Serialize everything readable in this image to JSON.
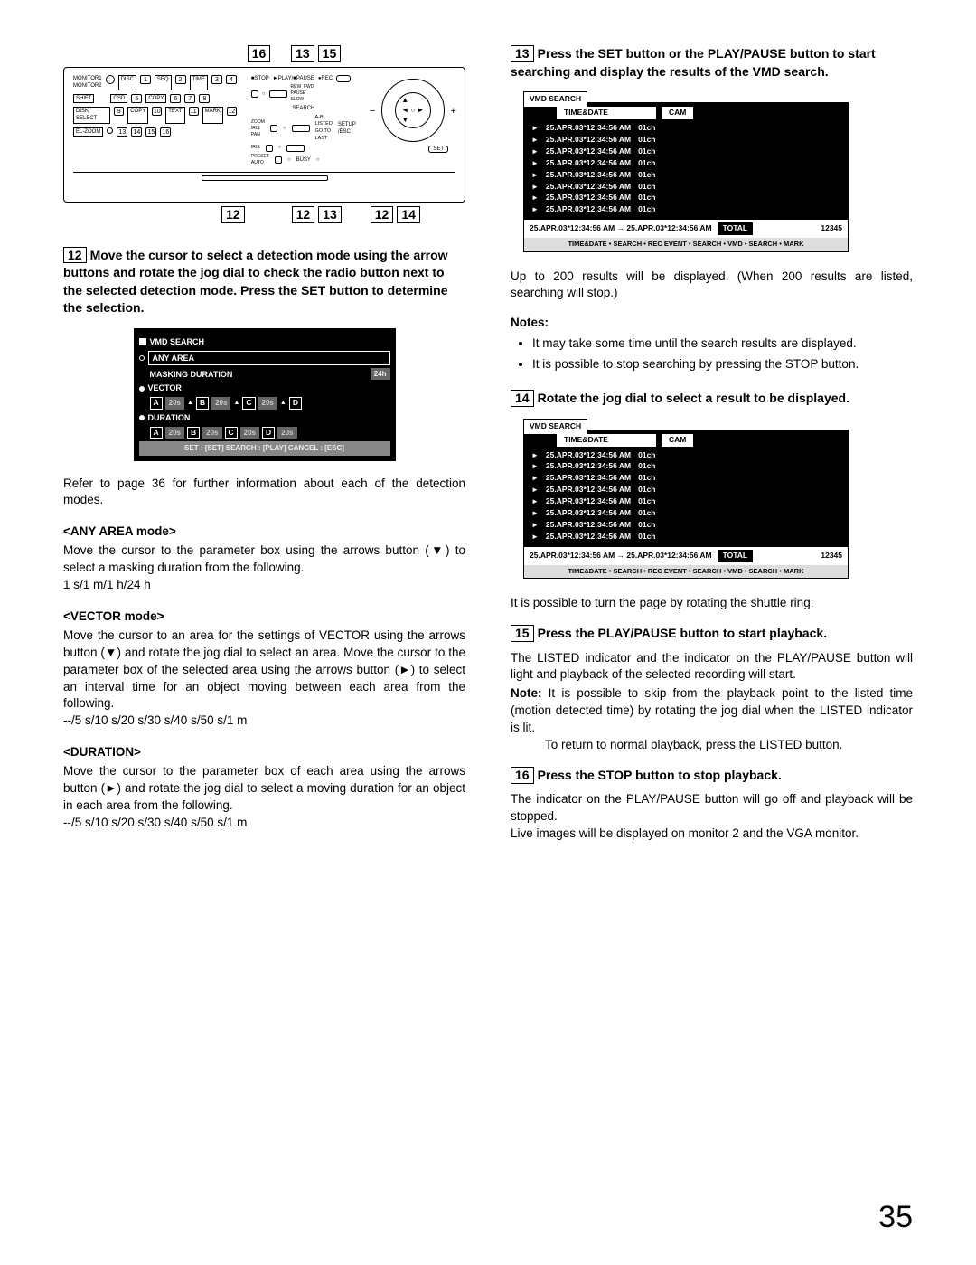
{
  "page_number": "35",
  "top_callouts": {
    "a": "16",
    "b": "13",
    "c": "15",
    "d": "12",
    "e": "12",
    "f": "13",
    "g": "12",
    "h": "14"
  },
  "panel": {
    "top_labels": [
      "MONITOR 1",
      "MONITOR 2",
      "REC",
      "STOP",
      "PLAY/PAUSE",
      "REC"
    ],
    "rightcol": [
      "SEARCH",
      "SETUP/ESC",
      "SET"
    ],
    "mini_words": [
      "STOP",
      "PLAY/PAUSE",
      "REW",
      "FWD",
      "PAUSE/SLOW"
    ],
    "row_btns1": [
      "1",
      "2",
      "3",
      "4"
    ],
    "row_btns2": [
      "5",
      "6",
      "7",
      "8"
    ],
    "row_btns3": [
      "9",
      "10",
      "11",
      "12"
    ],
    "row_btns4": [
      "13",
      "14",
      "15",
      "16"
    ],
    "left_labels": [
      "SHIFT",
      "DISK SELECT",
      "COPY",
      "SET",
      "A-B",
      "EL-ZOOM",
      "GO TO LAST",
      "LISTED",
      "TEXT",
      "MARK"
    ]
  },
  "step12": {
    "num": "12",
    "heading": "Move the cursor to select a detection mode using the arrow buttons and rotate the jog dial to check the radio button next to the selected detection mode. Press the SET button to determine the selection.",
    "panel": {
      "title": "VMD SEARCH",
      "rows": [
        {
          "bullet": "hollow",
          "label": "ANY AREA"
        },
        {
          "bullet": "",
          "label": "MASKING DURATION",
          "val": "24h"
        },
        {
          "bullet": "filled",
          "label": "VECTOR"
        },
        {
          "bullet": "",
          "letters": [
            [
              "A",
              "20s"
            ],
            [
              "B",
              "20s"
            ],
            [
              "C",
              "20s"
            ],
            [
              "D",
              ""
            ]
          ]
        },
        {
          "bullet": "filled",
          "label": "DURATION"
        },
        {
          "bullet": "",
          "letters": [
            [
              "A",
              "20s"
            ],
            [
              "B",
              "20s"
            ],
            [
              "C",
              "20s"
            ],
            [
              "D",
              "20s"
            ]
          ]
        }
      ],
      "footer": "SET : [SET]   SEARCH : [PLAY]   CANCEL : [ESC]"
    },
    "after_panel": "Refer to page 36 for further information about each of the detection modes.",
    "modes": {
      "any_area": {
        "title": "<ANY AREA mode>",
        "body": "Move the cursor to the parameter box using the arrows button (▼) to select a masking duration from the following.",
        "vals": "1 s/1 m/1 h/24 h"
      },
      "vector": {
        "title": "<VECTOR mode>",
        "body": "Move the cursor to an area for the settings of VECTOR using the arrows button (▼) and rotate the jog dial to select an area. Move the cursor to the parameter box of the selected area using the arrows button (►) to select an interval time for an object moving between each area from the following.",
        "vals": "--/5 s/10 s/20 s/30 s/40 s/50 s/1 m"
      },
      "duration": {
        "title": "<DURATION>",
        "body": "Move the cursor to the parameter box of each area using the arrows button (►) and rotate the jog dial to select a moving duration for an object in each area from the following.",
        "vals": "--/5 s/10 s/20 s/30 s/40 s/50 s/1 m"
      }
    }
  },
  "step13": {
    "num": "13",
    "heading": "Press the SET button or the PLAY/PAUSE button to start searching and display the results of the VMD search.",
    "after": "Up to 200 results will be displayed. (When 200 results are listed, searching will stop.)",
    "notes_label": "Notes:",
    "notes": [
      "It may take some time until the search results are displayed.",
      "It is possible to stop searching by pressing the STOP button."
    ]
  },
  "step14": {
    "num": "14",
    "heading": "Rotate the jog dial to select a result to be displayed.",
    "after": "It is possible to turn the page by rotating the shuttle ring."
  },
  "results": {
    "tab": "VMD SEARCH",
    "h1": "TIME&DATE",
    "h2": "CAM",
    "line_time": "25.APR.03*12:34:56 AM",
    "line_cam": "01ch",
    "line_count": 8,
    "range": "25.APR.03*12:34:56 AM → 25.APR.03*12:34:56 AM",
    "total_label": "TOTAL",
    "total_val": "12345",
    "nav": "TIME&DATE • SEARCH • REC EVENT • SEARCH • VMD • SEARCH • MARK"
  },
  "step15": {
    "num": "15",
    "heading": "Press the PLAY/PAUSE button to start playback.",
    "body": "The LISTED indicator and the indicator on the PLAY/PAUSE button will light and playback of the selected recording will start.",
    "note_label": "Note:",
    "note_body": "It is possible to skip from the playback point to the listed time (motion detected time) by rotating the jog dial when the LISTED indicator is lit.",
    "note_body2": "To return to normal playback, press the LISTED button."
  },
  "step16": {
    "num": "16",
    "heading": "Press the STOP button to stop playback.",
    "body1": "The indicator on the PLAY/PAUSE button will go off and playback will be stopped.",
    "body2": "Live images will be displayed on monitor 2 and the VGA monitor."
  }
}
